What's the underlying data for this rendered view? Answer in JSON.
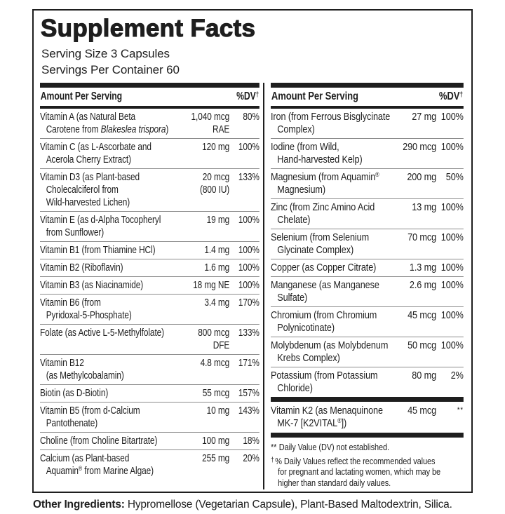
{
  "title": "Supplement Facts",
  "serving_size": "Serving Size 3 Capsules",
  "servings_per_container": "Servings Per Container 60",
  "column_header": {
    "amount": "Amount Per Serving",
    "dv_label": "%DV",
    "dv_dagger": "†"
  },
  "colors": {
    "text": "#1e1e1e",
    "separator": "#8c8c8c",
    "bar": "#1e1e1e",
    "background": "#ffffff"
  },
  "left_column": {
    "rows": [
      {
        "name": [
          {
            "t": "Vitamin A (as Natural Beta\nCarotene from "
          },
          {
            "t": "Blakeslea trispora",
            "s": "i"
          },
          {
            "t": ")"
          }
        ],
        "amount": "1,040 mcg\nRAE",
        "dv": "80%"
      },
      {
        "name": [
          {
            "t": "Vitamin C (as L-Ascorbate and\nAcerola Cherry Extract)"
          }
        ],
        "amount": "120 mg",
        "dv": "100%"
      },
      {
        "name": [
          {
            "t": "Vitamin D3 (as Plant-based\nCholecalciferol from\nWild-harvested Lichen)"
          }
        ],
        "amount": "20 mcg\n(800 IU)",
        "dv": "133%"
      },
      {
        "name": [
          {
            "t": "Vitamin E (as d-Alpha Tocopheryl\nfrom Sunflower)"
          }
        ],
        "amount": "19 mg",
        "dv": "100%"
      },
      {
        "name": [
          {
            "t": "Vitamin B1 (from Thiamine HCl)"
          }
        ],
        "amount": "1.4 mg",
        "dv": "100%"
      },
      {
        "name": [
          {
            "t": "Vitamin B2 (Riboflavin)"
          }
        ],
        "amount": "1.6 mg",
        "dv": "100%"
      },
      {
        "name": [
          {
            "t": "Vitamin B3 (as Niacinamide)"
          }
        ],
        "amount": "18 mg NE",
        "dv": "100%"
      },
      {
        "name": [
          {
            "t": "Vitamin B6 (from\nPyridoxal-5-Phosphate)"
          }
        ],
        "amount": "3.4 mg",
        "dv": "170%"
      },
      {
        "name": [
          {
            "t": "Folate (as Active L-5-Methylfolate)"
          }
        ],
        "amount": "800 mcg\nDFE",
        "dv": "133%"
      },
      {
        "name": [
          {
            "t": "Vitamin B12\n(as Methylcobalamin)"
          }
        ],
        "amount": "4.8 mcg",
        "dv": "171%"
      },
      {
        "name": [
          {
            "t": "Biotin (as D-Biotin)"
          }
        ],
        "amount": "55 mcg",
        "dv": "157%"
      },
      {
        "name": [
          {
            "t": "Vitamin B5 (from d-Calcium\nPantothenate)"
          }
        ],
        "amount": "10 mg",
        "dv": "143%"
      },
      {
        "name": [
          {
            "t": "Choline (from Choline Bitartrate)"
          }
        ],
        "amount": "100 mg",
        "dv": "18%"
      },
      {
        "name": [
          {
            "t": "Calcium (as Plant-based\nAquamin"
          },
          {
            "t": "®",
            "s": "sup"
          },
          {
            "t": " from Marine Algae)"
          }
        ],
        "amount": "255 mg",
        "dv": "20%"
      }
    ]
  },
  "right_column": {
    "rows": [
      {
        "name": [
          {
            "t": "Iron (from Ferrous Bisglycinate\nComplex)"
          }
        ],
        "amount": "27 mg",
        "dv": "100%"
      },
      {
        "name": [
          {
            "t": "Iodine (from Wild,\nHand-harvested Kelp)"
          }
        ],
        "amount": "290 mcg",
        "dv": "100%"
      },
      {
        "name": [
          {
            "t": "Magnesium (from Aquamin"
          },
          {
            "t": "®",
            "s": "sup"
          },
          {
            "t": "\nMagnesium)"
          }
        ],
        "amount": "200 mg",
        "dv": "50%"
      },
      {
        "name": [
          {
            "t": "Zinc (from Zinc Amino Acid\nChelate)"
          }
        ],
        "amount": "13 mg",
        "dv": "100%"
      },
      {
        "name": [
          {
            "t": "Selenium (from Selenium\nGlycinate Complex)"
          }
        ],
        "amount": "70 mcg",
        "dv": "100%"
      },
      {
        "name": [
          {
            "t": "Copper (as Copper Citrate)"
          }
        ],
        "amount": "1.3 mg",
        "dv": "100%"
      },
      {
        "name": [
          {
            "t": "Manganese (as Manganese\nSulfate)"
          }
        ],
        "amount": "2.6 mg",
        "dv": "100%"
      },
      {
        "name": [
          {
            "t": "Chromium (from Chromium\nPolynicotinate)"
          }
        ],
        "amount": "45 mcg",
        "dv": "100%"
      },
      {
        "name": [
          {
            "t": "Molybdenum (as Molybdenum\nKrebs Complex)"
          }
        ],
        "amount": "50 mcg",
        "dv": "100%"
      },
      {
        "name": [
          {
            "t": "Potassium (from Potassium\nChloride)"
          }
        ],
        "amount": "80 mg",
        "dv": "2%"
      }
    ],
    "special_row": {
      "name": [
        {
          "t": "Vitamin K2 (as Menaquinone\nMK-7 [K2VITAL"
        },
        {
          "t": "®",
          "s": "sup"
        },
        {
          "t": "])"
        }
      ],
      "amount": "45 mcg",
      "dv": "**"
    },
    "footnotes": [
      {
        "marker": "**",
        "text": "Daily Value (DV) not established."
      },
      {
        "marker": "†",
        "text": "% Daily Values reflect the recommended values\nfor pregnant and lactating women, which may be\nhigher than standard daily values."
      }
    ]
  },
  "other_ingredients": {
    "label": "Other Ingredients:",
    "text": " Hypromellose (Vegetarian Capsule), Plant-Based Maltodextrin, Silica."
  }
}
